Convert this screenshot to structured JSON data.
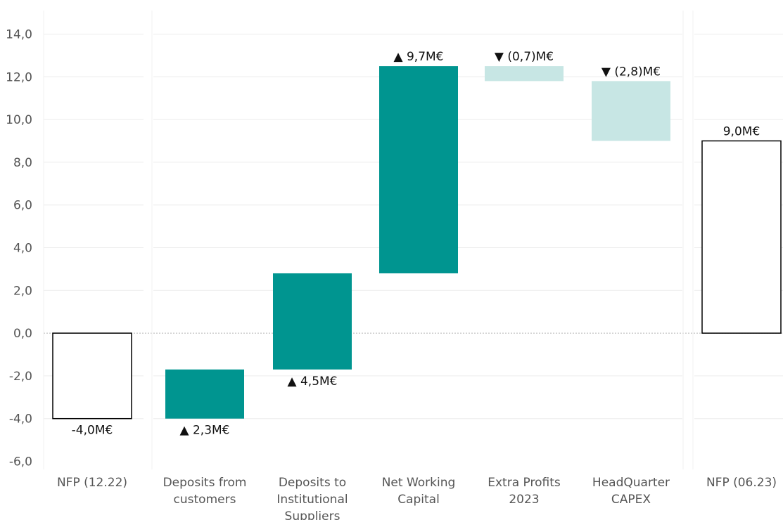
{
  "chart_data": {
    "type": "waterfall",
    "y_axis": {
      "ylim": [
        -6.6,
        15.2
      ],
      "ticks": [
        -6,
        -4,
        -2,
        0,
        2,
        4,
        6,
        8,
        10,
        12,
        14
      ],
      "tick_labels": [
        "-6,0",
        "-4,0",
        "-2,0",
        "0,0",
        "2,0",
        "4,0",
        "6,0",
        "8,0",
        "10,0",
        "12,0",
        "14,0"
      ],
      "grid": true
    },
    "categories": [
      {
        "label_lines": [
          "NFP (12.22)"
        ],
        "kind": "total",
        "start": 0,
        "end": -4.0,
        "label": "-4,0M€",
        "label_pos": "below"
      },
      {
        "label_lines": [
          "Deposits from",
          "customers"
        ],
        "kind": "increase",
        "start": -4.0,
        "end": -1.7,
        "label": "▲ 2,3M€",
        "label_pos": "below"
      },
      {
        "label_lines": [
          "Deposits to",
          "Institutional",
          "Suppliers"
        ],
        "kind": "increase",
        "start": -1.7,
        "end": 2.8,
        "label": "▲ 4,5M€",
        "label_pos": "below"
      },
      {
        "label_lines": [
          "Net Working",
          "Capital"
        ],
        "kind": "increase",
        "start": 2.8,
        "end": 12.5,
        "label": "▲ 9,7M€",
        "label_pos": "above"
      },
      {
        "label_lines": [
          "Extra Profits",
          "2023"
        ],
        "kind": "decrease",
        "start": 12.5,
        "end": 11.8,
        "label": "▼ (0,7)M€",
        "label_pos": "above"
      },
      {
        "label_lines": [
          "HeadQuarter",
          "CAPEX"
        ],
        "kind": "decrease",
        "start": 11.8,
        "end": 9.0,
        "label": "▼ (2,8)M€",
        "label_pos": "above"
      },
      {
        "label_lines": [
          "NFP (06.23)"
        ],
        "kind": "total",
        "start": 0,
        "end": 9.0,
        "label": "9,0M€",
        "label_pos": "above"
      }
    ],
    "colors": {
      "increase": "#009590",
      "decrease": "#c7e6e4",
      "total_fill": "#ffffff",
      "total_stroke": "#000000",
      "grid": "#ececec",
      "zero_line": "#b5b5b5",
      "axis_text": "#555555",
      "label_text": "#111111"
    }
  }
}
